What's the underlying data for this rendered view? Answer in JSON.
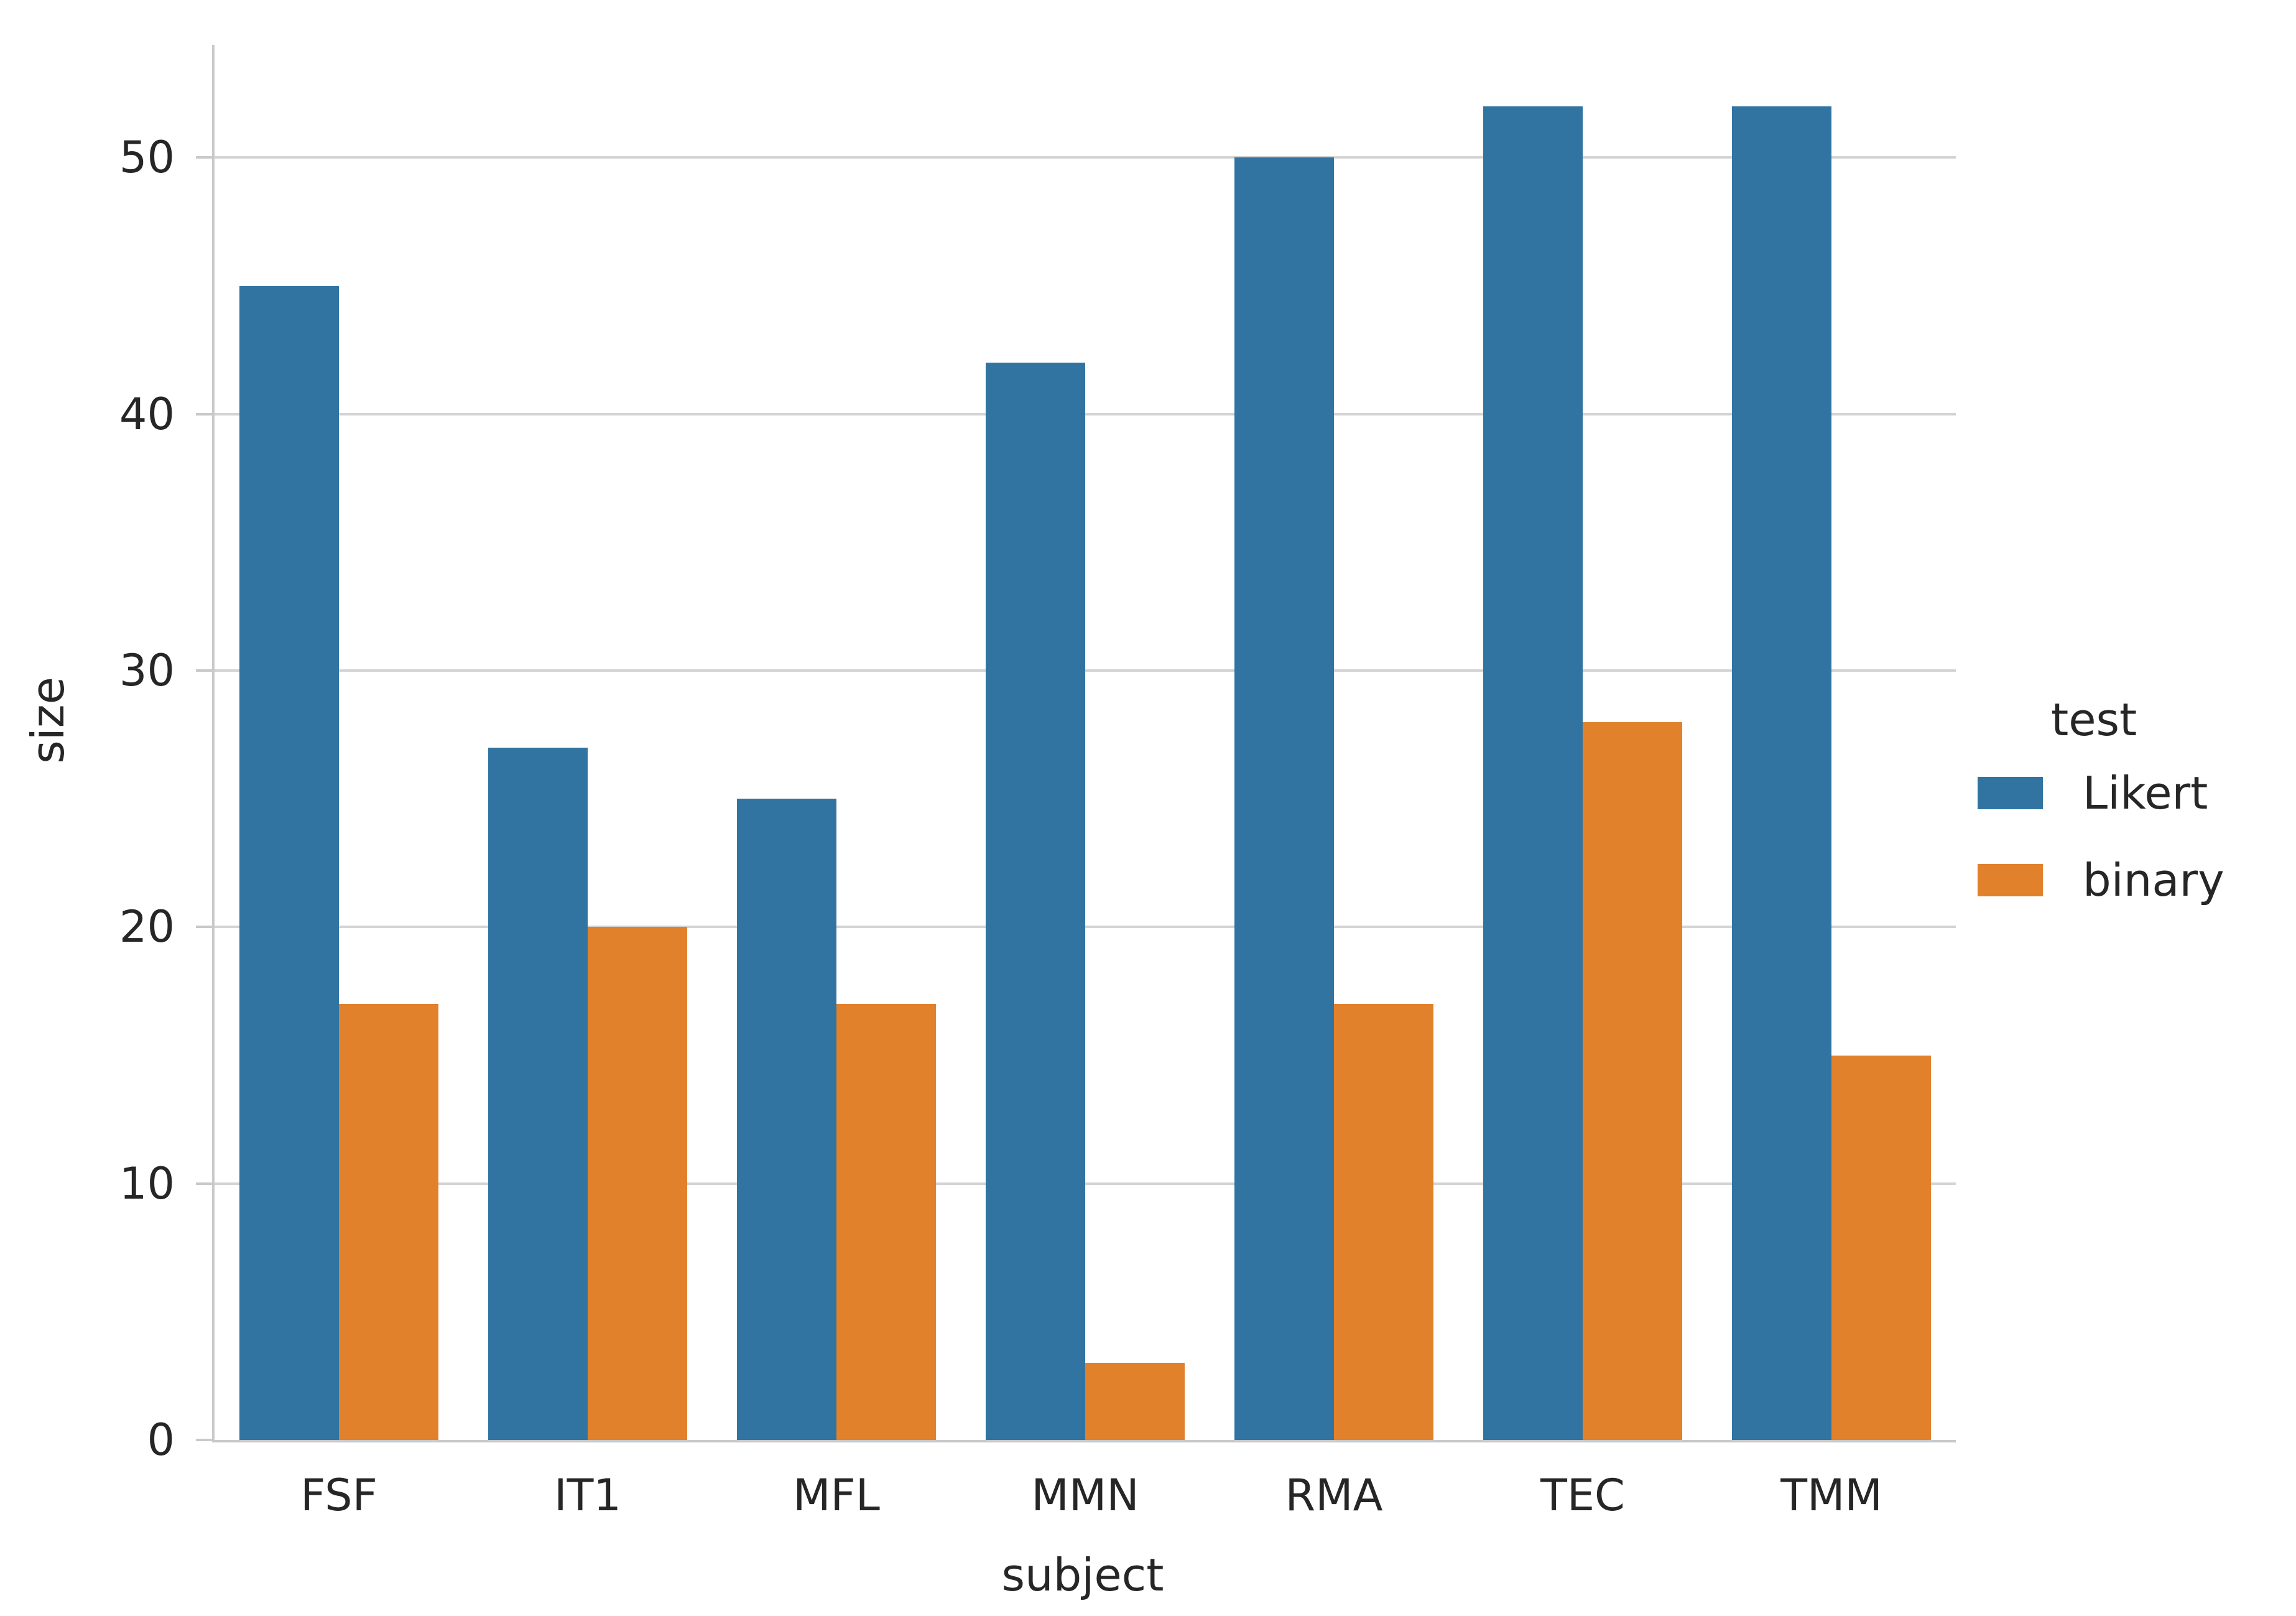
{
  "chart_data": {
    "type": "bar",
    "title": "",
    "categories": [
      "FSF",
      "IT1",
      "MFL",
      "MMN",
      "RMA",
      "TEC",
      "TMM"
    ],
    "series": [
      {
        "name": "Likert",
        "color": "#3274a1",
        "values": [
          45,
          27,
          25,
          42,
          50,
          52,
          52
        ]
      },
      {
        "name": "binary",
        "color": "#e1812c",
        "values": [
          17,
          20,
          17,
          3,
          17,
          28,
          15
        ]
      }
    ],
    "xlabel": "subject",
    "ylabel": "size",
    "yticks": [
      0,
      10,
      20,
      30,
      40,
      50
    ],
    "ylim": [
      0,
      54.4
    ],
    "grid": "horizontal-only",
    "legend": {
      "title": "test",
      "position": "right-of-plot"
    }
  },
  "style_colors": {
    "bar_blue": "#3274a1",
    "bar_orange": "#e1812c",
    "gridline": "#d4d4d4",
    "spine": "#c9c9c9",
    "text": "#262626",
    "background": "#ffffff"
  }
}
